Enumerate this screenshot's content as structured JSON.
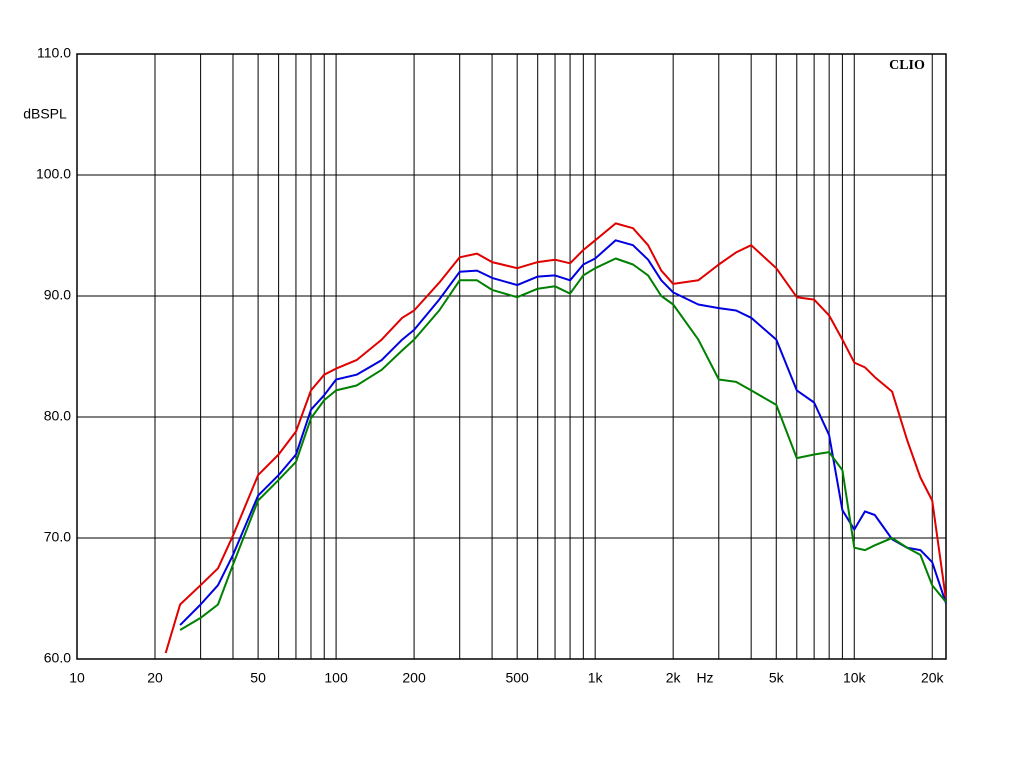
{
  "chart_data": {
    "type": "line",
    "y_label": "dBSPL",
    "x_label": "Hz",
    "annotation": "CLIO",
    "log_x": true,
    "grid": true,
    "xlim": [
      10,
      22600
    ],
    "ylim": [
      60,
      110
    ],
    "xticks": [
      10,
      20,
      50,
      100,
      200,
      500,
      {
        "value": 1000,
        "label": "1k"
      },
      {
        "value": 2000,
        "label": "2k"
      },
      {
        "value": 5000,
        "label": "5k"
      },
      {
        "value": 10000,
        "label": "10k"
      },
      {
        "value": 20000,
        "label": "20k"
      }
    ],
    "xminor": [
      30,
      40,
      60,
      70,
      80,
      90,
      300,
      400,
      600,
      700,
      800,
      900,
      3000,
      4000,
      6000,
      7000,
      8000,
      9000
    ],
    "yticks": [
      {
        "value": 60,
        "label": "60.0"
      },
      {
        "value": 70,
        "label": "70.0"
      },
      {
        "value": 80,
        "label": "80.0"
      },
      {
        "value": 90,
        "label": "90.0"
      },
      {
        "value": 100,
        "label": "100.0"
      },
      {
        "value": 110,
        "label": "110.0"
      }
    ],
    "x": [
      22,
      25,
      30,
      35,
      40,
      50,
      60,
      70,
      80,
      90,
      100,
      120,
      150,
      180,
      200,
      250,
      300,
      350,
      400,
      500,
      600,
      700,
      800,
      900,
      1000,
      1200,
      1400,
      1600,
      1800,
      2000,
      2500,
      3000,
      3500,
      4000,
      5000,
      6000,
      7000,
      8000,
      9000,
      10000,
      11000,
      12000,
      14000,
      16000,
      18000,
      20000,
      22600
    ],
    "series": [
      {
        "color": "#e00000",
        "values": [
          60.5,
          64.5,
          66.1,
          67.5,
          70.2,
          75.2,
          76.9,
          78.8,
          82.2,
          83.5,
          84.0,
          84.7,
          86.4,
          88.2,
          88.8,
          91.1,
          93.2,
          93.5,
          92.8,
          92.3,
          92.8,
          93.0,
          92.7,
          93.8,
          94.6,
          96.0,
          95.6,
          94.2,
          92.1,
          91.0,
          91.3,
          92.6,
          93.6,
          94.2,
          92.3,
          89.9,
          89.7,
          88.4,
          86.4,
          84.5,
          84.1,
          83.3,
          82.1,
          78.1,
          75.0,
          73.1,
          64.9
        ]
      },
      {
        "color": "#0000e0",
        "values": [
          null,
          62.8,
          64.5,
          66.1,
          68.6,
          73.5,
          75.2,
          76.9,
          80.6,
          81.8,
          83.1,
          83.5,
          84.7,
          86.4,
          87.2,
          89.7,
          92.0,
          92.1,
          91.5,
          90.9,
          91.6,
          91.7,
          91.3,
          92.6,
          93.1,
          94.6,
          94.2,
          93.0,
          91.3,
          90.3,
          89.3,
          89.0,
          88.8,
          88.2,
          86.4,
          82.2,
          81.2,
          78.5,
          72.3,
          70.7,
          72.2,
          71.9,
          69.9,
          69.2,
          69.0,
          68.0,
          64.6
        ]
      },
      {
        "color": "#008000",
        "values": [
          null,
          62.4,
          63.4,
          64.5,
          67.8,
          73.1,
          74.8,
          76.3,
          79.9,
          81.4,
          82.2,
          82.6,
          83.9,
          85.5,
          86.4,
          88.8,
          91.3,
          91.3,
          90.5,
          89.9,
          90.6,
          90.8,
          90.2,
          91.7,
          92.3,
          93.1,
          92.6,
          91.7,
          90.0,
          89.3,
          86.4,
          83.1,
          82.9,
          82.2,
          81.0,
          76.6,
          76.9,
          77.1,
          75.6,
          69.2,
          69.0,
          69.4,
          70.0,
          69.2,
          68.6,
          66.1,
          64.7
        ]
      }
    ]
  }
}
